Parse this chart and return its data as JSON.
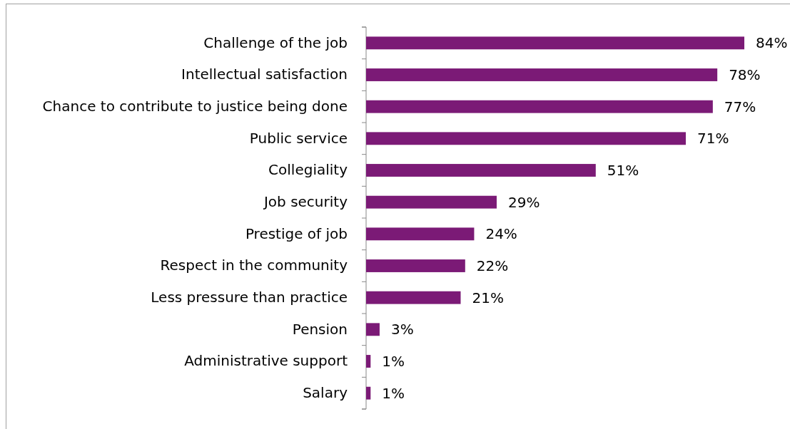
{
  "chart_data": {
    "type": "bar",
    "orientation": "horizontal",
    "categories": [
      "Challenge of the job",
      "Intellectual satisfaction",
      "Chance to contribute to justice being done",
      "Public service",
      "Collegiality",
      "Job security",
      "Prestige of job",
      "Respect in the community",
      "Less pressure than practice",
      "Pension",
      "Administrative support",
      "Salary"
    ],
    "values": [
      84,
      78,
      77,
      71,
      51,
      29,
      24,
      22,
      21,
      3,
      1,
      1
    ],
    "value_labels": [
      "84%",
      "78%",
      "77%",
      "71%",
      "51%",
      "29%",
      "24%",
      "22%",
      "21%",
      "3%",
      "1%",
      "1%"
    ],
    "color": "#7b1a76"
  }
}
